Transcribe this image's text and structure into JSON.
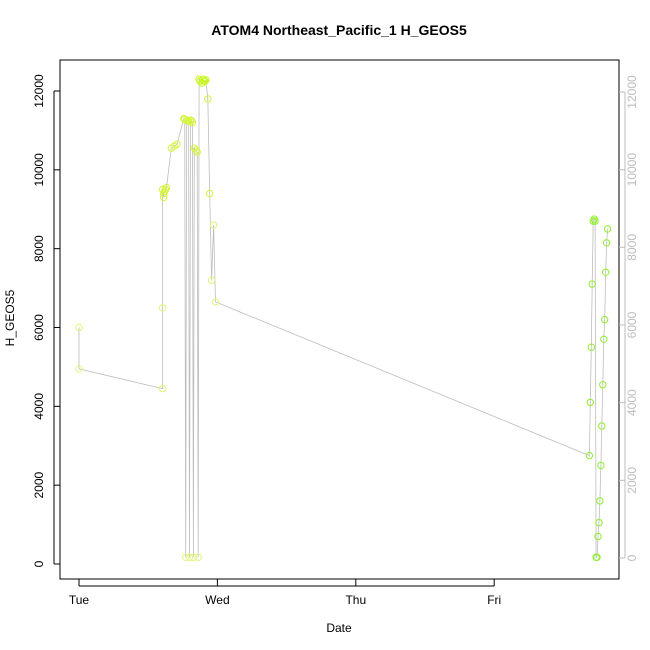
{
  "chart_data": {
    "type": "scatter",
    "title": "ATOM4 Northeast_Pacific_1 H_GEOS5",
    "xlabel": "Date",
    "ylabel": "H_GEOS5",
    "x_ticks": [
      "Tue",
      "Wed",
      "Thu",
      "Fri"
    ],
    "y_ticks": [
      "0",
      "2000",
      "4000",
      "6000",
      "8000",
      "10000",
      "12000"
    ],
    "y_ticks_right": [
      "0",
      "2000",
      "4000",
      "6000",
      "8000",
      "10000",
      "12000"
    ],
    "ylim": [
      0,
      12400
    ],
    "grid": false,
    "line_color": "#bdbdbd",
    "point_colors": [
      "#e0f57a",
      "#d4f53c",
      "#c6f71a",
      "#8fef2e"
    ],
    "series": [
      {
        "x": [
          "Tue 00:00",
          "Tue 00:00",
          "Tue 14:30",
          "Tue 14:30",
          "Tue 14:30",
          "Tue 14:40",
          "Tue 14:40",
          "Tue 14:50",
          "Tue 15:00",
          "Tue 15:10",
          "Tue 16:00",
          "Tue 16:30",
          "Tue 17:00",
          "Tue 18:10",
          "Tue 18:20",
          "Tue 18:30",
          "Tue 18:40",
          "Tue 18:50",
          "Tue 19:00",
          "Tue 19:10",
          "Tue 19:20",
          "Tue 19:30",
          "Tue 19:40",
          "Tue 19:50",
          "Tue 20:00",
          "Tue 20:20",
          "Tue 20:30",
          "Tue 20:40",
          "Tue 20:50",
          "Tue 21:00",
          "Tue 21:20",
          "Tue 21:30",
          "Tue 21:40",
          "Tue 21:50",
          "Tue 22:00",
          "Tue 22:20",
          "Tue 22:40",
          "Tue 23:00",
          "Tue 23:20",
          "Tue 23:40"
        ],
        "y": [
          6000,
          4950,
          4450,
          6500,
          9500,
          9300,
          9400,
          9450,
          9500,
          9550,
          10550,
          10600,
          10650,
          11300,
          11280,
          170,
          11250,
          11260,
          11240,
          170,
          11260,
          11250,
          11200,
          170,
          10550,
          10500,
          10450,
          170,
          12300,
          12250,
          12200,
          12300,
          12250,
          12250,
          12280,
          11800,
          9400,
          7200,
          8600,
          6650
        ]
      },
      {
        "x": [
          "Fri 16:30",
          "Fri 16:40",
          "Fri 16:50",
          "Fri 17:00",
          "Fri 17:10",
          "Fri 17:20",
          "Fri 17:30",
          "Fri 17:40",
          "Fri 17:50",
          "Fri 18:00",
          "Fri 18:10",
          "Fri 18:20",
          "Fri 18:30",
          "Fri 18:40",
          "Fri 18:50",
          "Fri 19:00",
          "Fri 19:10",
          "Fri 19:20",
          "Fri 19:30",
          "Fri 19:40"
        ],
        "y": [
          2750,
          4100,
          5500,
          7100,
          8700,
          8750,
          8700,
          170,
          170,
          700,
          1050,
          1600,
          2500,
          3500,
          4550,
          5700,
          6200,
          7400,
          8150,
          8500
        ]
      }
    ]
  }
}
